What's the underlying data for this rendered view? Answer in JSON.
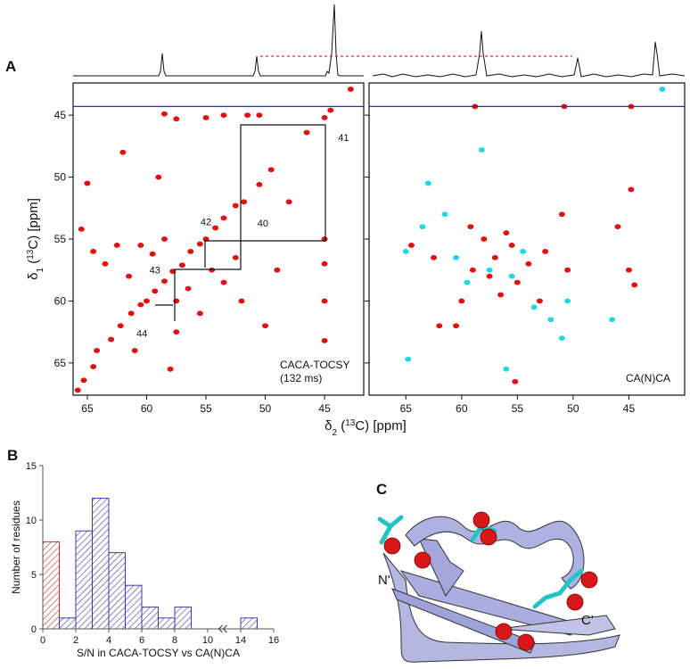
{
  "figure": {
    "panel_labels": [
      "A",
      "B",
      "C"
    ],
    "xlabel_a": [
      "δ",
      "2",
      " (",
      "13",
      "C) [ppm]"
    ],
    "ylabel_a": [
      "δ",
      "1",
      " (",
      "13",
      "C) [ppm]"
    ],
    "label_format": [
      "",
      "sub",
      "",
      "sup",
      ""
    ]
  },
  "structure": {
    "n_term": "N'",
    "c_term": "C'"
  },
  "chart_data": [
    {
      "type": "scatter",
      "xlim": [
        66.2,
        41.7
      ],
      "ylim": [
        42.4,
        67.6
      ],
      "xticks": [
        65,
        60,
        55,
        50,
        45
      ],
      "yticks": [
        45,
        50,
        55,
        60,
        65
      ],
      "hline": 44.3,
      "hline_color": "#2a2ad0",
      "notes": [
        "CACA-TOCSY",
        "(132 ms)"
      ],
      "annotations": [
        {
          "text": "41",
          "x": 43.4,
          "y": 46.8
        },
        {
          "text": "40",
          "x": 50.2,
          "y": 53.7
        },
        {
          "text": "42",
          "x": 55.0,
          "y": 53.6
        },
        {
          "text": "43",
          "x": 59.3,
          "y": 57.5
        },
        {
          "text": "44",
          "x": 60.4,
          "y": 62.6
        }
      ],
      "series": [
        {
          "color": "#e01010",
          "x": [
            65.8,
            65.3,
            64.5,
            64.2,
            63.0,
            62.2,
            61.3,
            60.5,
            60.0,
            59.3,
            58.5,
            57.8,
            57.0,
            56.3,
            55.5,
            55.0,
            54.2,
            53.5,
            52.5,
            51.8,
            50.5,
            49.5,
            46.5,
            45.0,
            44.5,
            42.8,
            65.5,
            64.5,
            63.5,
            62.5,
            61.5,
            60.5,
            59.5,
            58.5,
            57.5,
            57.5,
            56.5,
            55.5,
            54.5,
            53.5,
            52.5,
            51.5,
            45.0,
            45.0,
            45.0,
            45.0,
            50.5,
            58.5,
            57.5,
            55.0,
            53.5,
            61.0,
            58.0,
            52.0,
            50.0,
            49.0,
            48.0,
            59.0,
            62.0,
            65.0
          ],
          "y": [
            67.2,
            66.4,
            65.3,
            64.0,
            63.1,
            62.0,
            61.0,
            60.3,
            60.0,
            59.2,
            58.4,
            57.6,
            57.1,
            56.0,
            55.4,
            55.0,
            54.1,
            53.3,
            52.3,
            52.0,
            50.6,
            49.4,
            46.4,
            45.2,
            44.6,
            42.9,
            54.2,
            56.0,
            57.0,
            55.5,
            58.0,
            55.5,
            56.2,
            55.0,
            60.0,
            62.5,
            59.0,
            61.0,
            57.5,
            58.5,
            56.5,
            45.0,
            55.0,
            57.0,
            60.0,
            63.2,
            45.0,
            44.9,
            45.3,
            45.2,
            45.0,
            64.0,
            65.5,
            60.0,
            62.0,
            57.5,
            52.0,
            50.0,
            48.0,
            50.5
          ]
        }
      ]
    },
    {
      "type": "scatter",
      "xlim": [
        68.3,
        40.0
      ],
      "ylim": [
        42.4,
        67.6
      ],
      "xticks": [
        65,
        60,
        55,
        50,
        45
      ],
      "yticks": [
        45,
        50,
        55,
        60,
        65
      ],
      "show_ytick_labels": false,
      "hline": 44.3,
      "hline_color": "#2a2ad0",
      "notes": [
        "CA(N)CA"
      ],
      "series": [
        {
          "color": "#e01010",
          "x": [
            58.8,
            50.8,
            44.8,
            64.5,
            62.0,
            60.0,
            59.0,
            58.0,
            57.0,
            56.5,
            55.5,
            55.0,
            54.0,
            53.0,
            52.5,
            51.0,
            46.0,
            45.0,
            44.5,
            44.8,
            55.2,
            59.2,
            60.5,
            57.5,
            56.0,
            62.5,
            50.5
          ],
          "y": [
            44.3,
            44.3,
            44.3,
            55.5,
            62.0,
            60.0,
            57.5,
            55.0,
            56.5,
            59.5,
            55.5,
            58.5,
            57.0,
            60.0,
            56.0,
            53.0,
            54.0,
            57.5,
            58.7,
            51.0,
            66.5,
            54.0,
            62.0,
            58.0,
            54.5,
            56.5,
            57.5
          ]
        },
        {
          "color": "#20d8e0",
          "x": [
            65.0,
            63.0,
            61.5,
            60.5,
            59.5,
            58.2,
            57.5,
            55.5,
            54.5,
            53.5,
            52.0,
            51.0,
            50.5,
            46.5,
            56.0,
            64.8,
            63.5,
            42.0
          ],
          "y": [
            56.0,
            50.5,
            53.0,
            56.5,
            58.5,
            47.8,
            57.5,
            58.0,
            56.0,
            60.5,
            61.5,
            63.0,
            60.0,
            61.5,
            65.5,
            64.7,
            54.0,
            42.9
          ]
        }
      ]
    },
    {
      "type": "histogram",
      "bins": [
        0,
        1,
        2,
        3,
        4,
        5,
        6,
        7,
        8,
        9,
        10,
        11,
        12,
        13,
        14,
        15
      ],
      "values": [
        8,
        1,
        9,
        12,
        7,
        4,
        2,
        1,
        2,
        0,
        0,
        0,
        0,
        0,
        1
      ],
      "color": "#3b3ba8",
      "highlight_color": "#c8302e",
      "highlight_bins": [
        0
      ],
      "xbreak": [
        11,
        13
      ],
      "xlim": [
        0,
        16
      ],
      "ylim": [
        0,
        15
      ],
      "xticks": [
        0,
        2,
        4,
        6,
        8,
        10,
        14,
        16
      ],
      "yticks": [
        0,
        5,
        10,
        15
      ],
      "xlabel": "S/N in CACA-TOCSY vs CA(N)CA",
      "ylabel": "Number of residues"
    }
  ]
}
